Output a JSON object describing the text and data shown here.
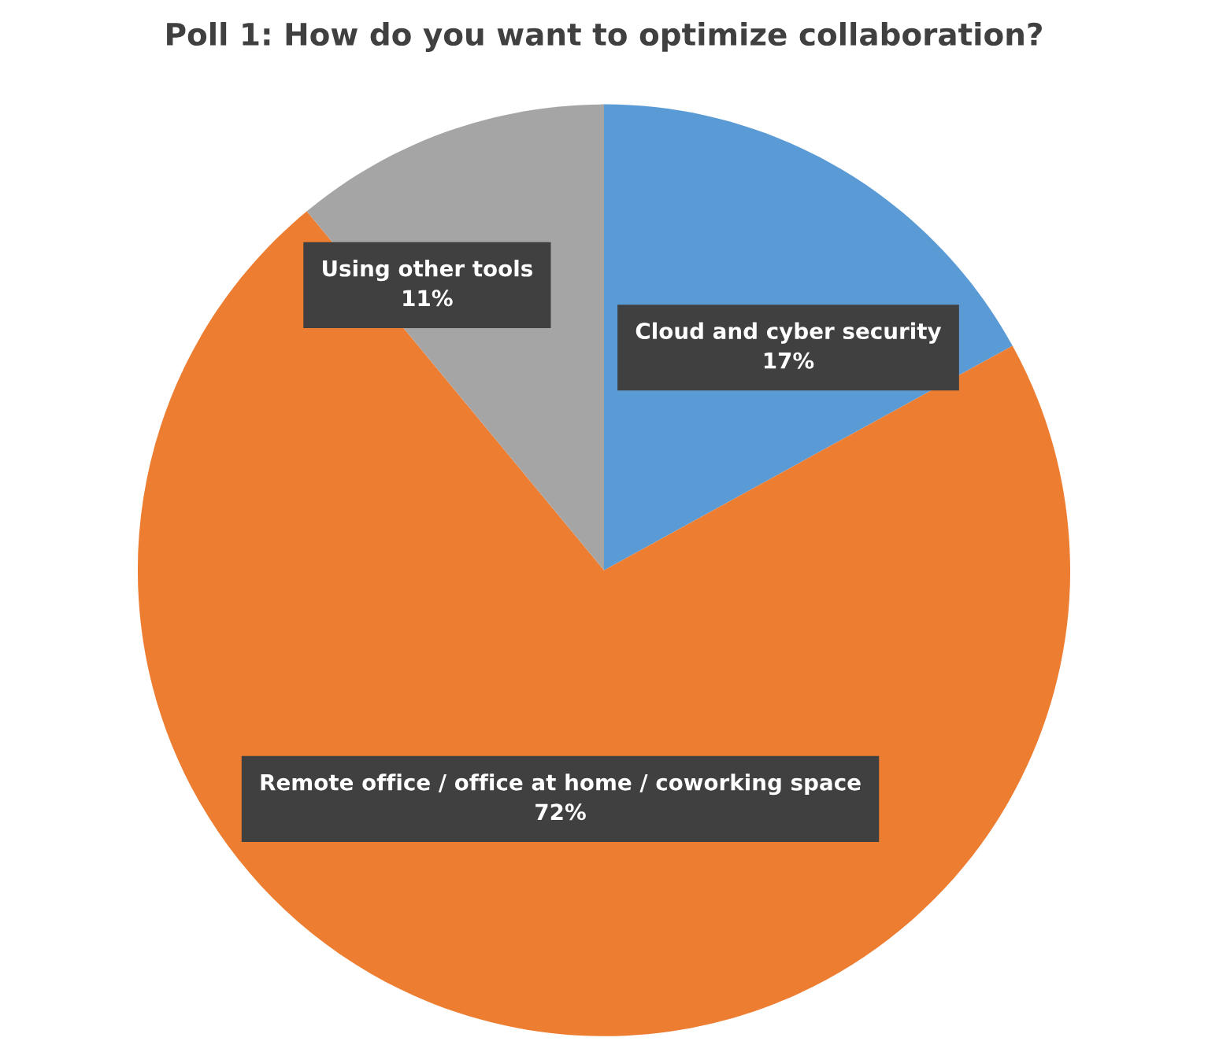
{
  "chart_data": {
    "type": "pie",
    "title": "Poll 1: How do you want to optimize collaboration?",
    "categories": [
      "Cloud and cyber security",
      "Remote office / office at home / coworking space",
      "Using other tools"
    ],
    "values": [
      17,
      72,
      11
    ],
    "value_labels": [
      "17%",
      "72%",
      "11%"
    ],
    "colors": [
      "#5b9bd5",
      "#ed7d31",
      "#a5a5a5"
    ],
    "legend": false
  }
}
